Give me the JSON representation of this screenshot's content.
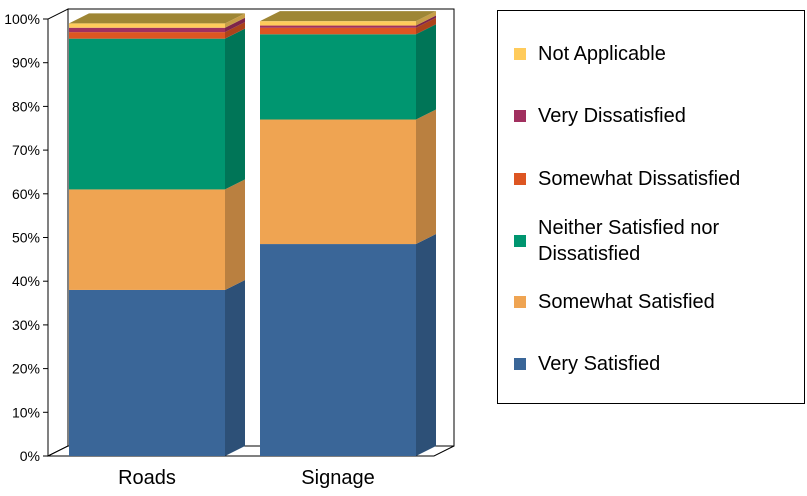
{
  "chart_data": {
    "type": "bar",
    "stacked": true,
    "three_d": true,
    "categories": [
      "Roads",
      "Signage"
    ],
    "ylim": [
      0,
      100
    ],
    "yticks": [
      "0%",
      "10%",
      "20%",
      "30%",
      "40%",
      "50%",
      "60%",
      "70%",
      "80%",
      "90%",
      "100%"
    ],
    "series": [
      {
        "name": "Very Satisfied",
        "color": "#3A6698",
        "values": [
          38,
          48.5
        ]
      },
      {
        "name": "Somewhat Satisfied",
        "color": "#EFA452",
        "values": [
          23,
          28.5
        ]
      },
      {
        "name": "Neither Satisfied nor Dissatisfied",
        "color": "#009670",
        "values": [
          34.5,
          19.5
        ]
      },
      {
        "name": "Somewhat Dissatisfied",
        "color": "#DD5622",
        "values": [
          1.5,
          1.5
        ]
      },
      {
        "name": "Very Dissatisfied",
        "color": "#A1305F",
        "values": [
          1,
          0.5
        ]
      },
      {
        "name": "Not Applicable",
        "color": "#FFCB5B",
        "values": [
          1,
          1
        ]
      }
    ],
    "legend_position": "right",
    "grid": false
  },
  "legend": {
    "items": [
      {
        "label": "Not Applicable",
        "color": "#FFCB5B"
      },
      {
        "label": "Very Dissatisfied",
        "color": "#A1305F"
      },
      {
        "label": "Somewhat Dissatisfied",
        "color": "#DD5622"
      },
      {
        "label": "Neither Satisfied nor Dissatisfied",
        "color": "#009670"
      },
      {
        "label": "Somewhat Satisfied",
        "color": "#EFA452"
      },
      {
        "label": "Very Satisfied",
        "color": "#3A6698"
      }
    ]
  }
}
